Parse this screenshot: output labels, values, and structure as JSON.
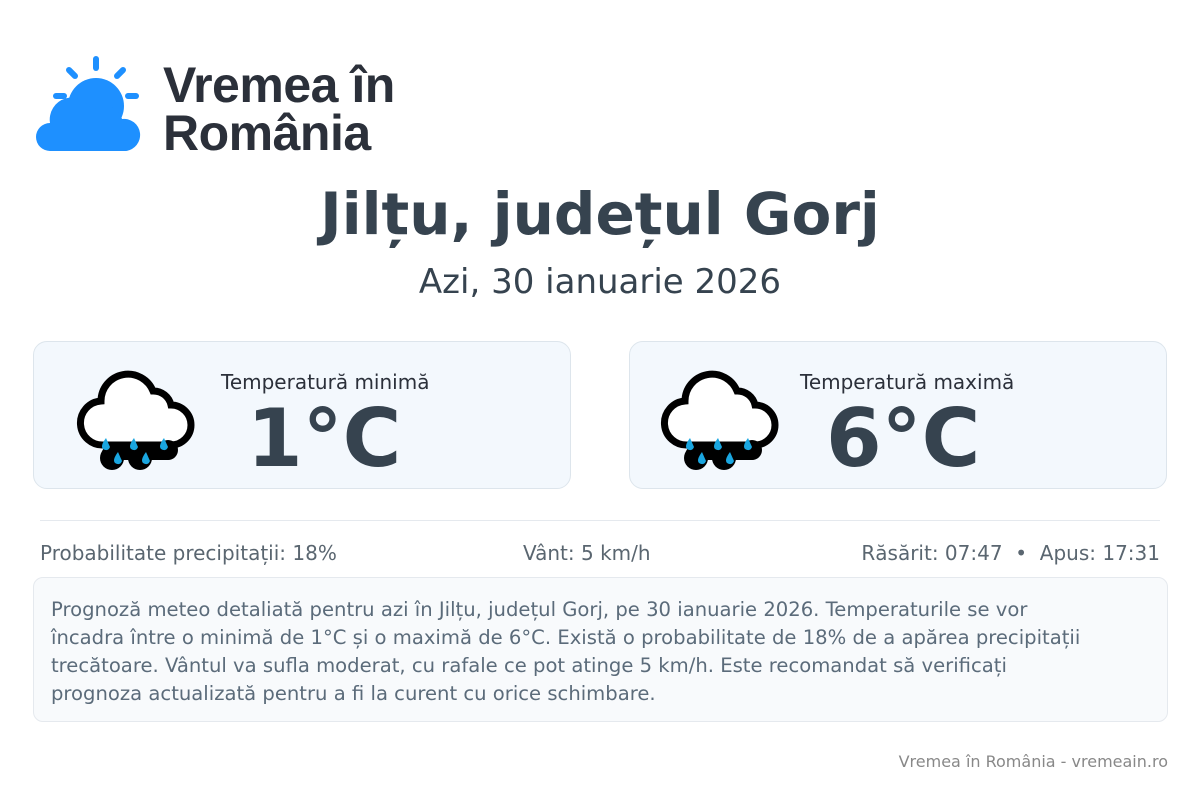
{
  "brand": {
    "line1": "Vremea în",
    "line2": "România",
    "accent": "#1e90ff"
  },
  "header": {
    "title": "Jilțu, județul Gorj",
    "date": "Azi, 30 ianuarie 2026"
  },
  "cards": [
    {
      "label": "Temperatură minimă",
      "value": "1°C",
      "icon": "rain-cloud-icon"
    },
    {
      "label": "Temperatură maximă",
      "value": "6°C",
      "icon": "rain-cloud-icon"
    }
  ],
  "info": {
    "precip": "Probabilitate precipitații: 18%",
    "wind": "Vânt: 5 km/h",
    "sun": "Răsărit: 07:47  •  Apus: 17:31"
  },
  "description": "Prognoză meteo detaliată pentru azi în Jilțu, județul Gorj, pe 30 ianuarie 2026. Temperaturile se vor încadra între o minimă de 1°C și o maximă de 6°C. Există o probabilitate de 18% de a apărea precipitații trecătoare. Vântul va sufla moderat, cu rafale ce pot atinge 5 km/h. Este recomandat să verificați prognoza actualizată pentru a fi la curent cu orice schimbare.",
  "footer": "Vremea în România - vremeain.ro"
}
